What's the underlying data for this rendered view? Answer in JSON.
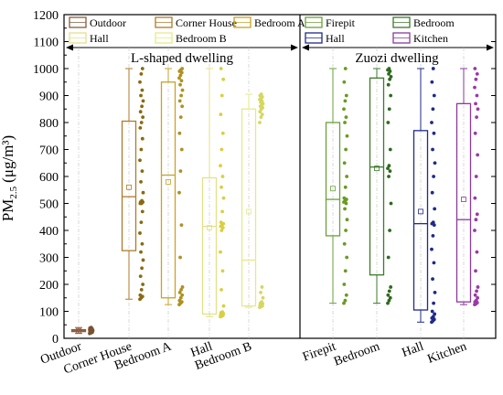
{
  "chart_data": {
    "type": "box",
    "ylabel_main": "PM",
    "ylabel_sub": "2.5",
    "ylabel_unit": "(μg/m³)",
    "ylim": [
      0,
      1200
    ],
    "yticks": [
      0,
      100,
      200,
      300,
      400,
      500,
      600,
      700,
      800,
      900,
      1000,
      1100,
      1200
    ],
    "grid": false,
    "panels": [
      {
        "title": "L-shaped dwelling",
        "legend": [
          {
            "label": "Outdoor",
            "color": "#8b5a3c"
          },
          {
            "label": "Corner House",
            "color": "#b07a2a"
          },
          {
            "label": "Bedroom A",
            "color": "#c9a227"
          },
          {
            "label": "Hall",
            "color": "#e5e08a"
          },
          {
            "label": "Bedroom B",
            "color": "#e6ea86"
          }
        ],
        "categories": [
          {
            "name": "Outdoor",
            "color": "#8b5a3c",
            "dot": "#7a5230",
            "q1": 25,
            "median": 28,
            "q3": 32,
            "mean": 28,
            "whisker_low": 18,
            "whisker_high": 40,
            "points": [
              18,
              20,
              22,
              24,
              25,
              26,
              27,
              28,
              29,
              30,
              31,
              32,
              33,
              35,
              38,
              40
            ]
          },
          {
            "name": "Corner House",
            "color": "#b07a2a",
            "dot": "#8a6a10",
            "q1": 325,
            "median": 525,
            "q3": 805,
            "mean": 560,
            "whisker_low": 145,
            "whisker_high": 1000,
            "points": [
              145,
              150,
              155,
              160,
              180,
              200,
              230,
              260,
              290,
              320,
              350,
              390,
              430,
              470,
              500,
              500,
              505,
              505,
              510,
              540,
              580,
              620,
              660,
              700,
              740,
              780,
              800,
              820,
              840,
              860,
              880,
              900,
              920,
              950,
              980,
              1000
            ]
          },
          {
            "name": "Bedroom A",
            "color": "#c9a227",
            "dot": "#b09020",
            "q1": 150,
            "median": 605,
            "q3": 950,
            "mean": 580,
            "whisker_low": 125,
            "whisker_high": 1000,
            "points": [
              125,
              130,
              135,
              140,
              150,
              160,
              170,
              180,
              190,
              300,
              420,
              540,
              620,
              700,
              760,
              820,
              860,
              880,
              900,
              920,
              940,
              955,
              965,
              975,
              985,
              990,
              995,
              1000
            ]
          },
          {
            "name": "Hall",
            "color": "#e5e08a",
            "dot": "#d8d040",
            "q1": 90,
            "median": 415,
            "q3": 595,
            "mean": 410,
            "whisker_low": 80,
            "whisker_high": 1000,
            "points": [
              80,
              82,
              85,
              88,
              90,
              92,
              95,
              98,
              120,
              180,
              250,
              320,
              400,
              410,
              415,
              420,
              425,
              430,
              470,
              520,
              560,
              600,
              640,
              700,
              760,
              830,
              900,
              960,
              1000
            ]
          },
          {
            "name": "Bedroom B",
            "color": "#e6ea86",
            "dot": "#d4d860",
            "q1": 120,
            "median": 290,
            "q3": 850,
            "mean": 470,
            "whisker_low": 115,
            "whisker_high": 905,
            "points": [
              115,
              118,
              120,
              122,
              125,
              128,
              130,
              135,
              150,
              170,
              190,
              800,
              820,
              830,
              840,
              850,
              855,
              860,
              865,
              870,
              875,
              880,
              885,
              890,
              895,
              900,
              905
            ]
          }
        ]
      },
      {
        "title": "Zuozi dwelling",
        "legend": [
          {
            "label": "Firepit",
            "color": "#6aa13a"
          },
          {
            "label": "Bedroom",
            "color": "#3c7a2a"
          },
          {
            "label": "Hall",
            "color": "#1f2a8a"
          },
          {
            "label": "Kitchen",
            "color": "#8a3a9a"
          }
        ],
        "categories": [
          {
            "name": "Firepit",
            "color": "#6aa13a",
            "dot": "#6a9a20",
            "q1": 380,
            "median": 515,
            "q3": 800,
            "mean": 555,
            "whisker_low": 130,
            "whisker_high": 1000,
            "points": [
              130,
              140,
              160,
              200,
              250,
              300,
              350,
              400,
              440,
              480,
              500,
              505,
              510,
              515,
              520,
              560,
              600,
              650,
              700,
              750,
              800,
              820,
              850,
              880,
              900,
              950,
              1000
            ]
          },
          {
            "name": "Bedroom",
            "color": "#3c7a2a",
            "dot": "#2f6a1f",
            "q1": 235,
            "median": 635,
            "q3": 965,
            "mean": 630,
            "whisker_low": 130,
            "whisker_high": 1000,
            "points": [
              130,
              140,
              150,
              160,
              175,
              190,
              300,
              400,
              500,
              600,
              620,
              630,
              640,
              700,
              800,
              850,
              900,
              940,
              960,
              970,
              980,
              990,
              995,
              1000
            ]
          },
          {
            "name": "Hall",
            "color": "#1f2a8a",
            "dot": "#1f2a8a",
            "q1": 105,
            "median": 425,
            "q3": 770,
            "mean": 470,
            "whisker_low": 60,
            "whisker_high": 1000,
            "points": [
              60,
              65,
              70,
              75,
              80,
              90,
              100,
              130,
              170,
              220,
              280,
              330,
              380,
              420,
              425,
              430,
              480,
              540,
              600,
              650,
              700,
              760,
              800,
              850,
              900,
              950,
              1000
            ]
          },
          {
            "name": "Kitchen",
            "color": "#8a3a9a",
            "dot": "#9a3aa6",
            "q1": 135,
            "median": 440,
            "q3": 870,
            "mean": 515,
            "whisker_low": 125,
            "whisker_high": 1000,
            "points": [
              125,
              128,
              132,
              135,
              140,
              150,
              160,
              175,
              190,
              250,
              320,
              400,
              440,
              460,
              520,
              600,
              680,
              760,
              820,
              850,
              870,
              900,
              930,
              960,
              980,
              1000
            ]
          }
        ]
      }
    ]
  }
}
